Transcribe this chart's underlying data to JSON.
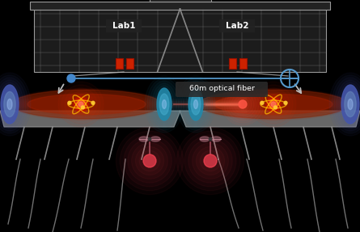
{
  "background_color": "#000000",
  "lab1_label": "Lab1",
  "lab2_label": "Lab2",
  "fiber_label": "60m optical fiber",
  "building_edge_color": "#999999",
  "blue_line_color": "#5599cc",
  "blue_dot_color": "#4488cc",
  "arrow_color": "#bbbbbb",
  "platform_color": "#888888",
  "mirror_blue": "#5566cc",
  "mirror_cyan": "#44aacc",
  "cavity_red": "#aa3300",
  "atom_red": "#cc2200",
  "orbit_color": "#ffaa00",
  "wire_color": "#cccccc",
  "fiber_pink": "#ff6655",
  "bowtie_pink": "#cc8899",
  "glow_pink": "#ff4455"
}
